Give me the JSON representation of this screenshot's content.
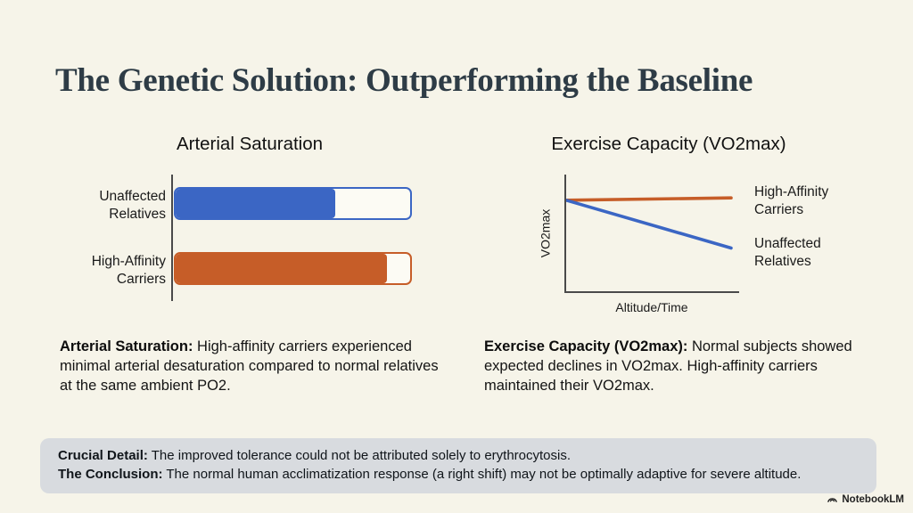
{
  "slide": {
    "title": "The Genetic Solution: Outperforming the Baseline",
    "colors": {
      "background": "#f6f4e9",
      "title_text": "#2e3c46",
      "axis": "#4a4a4a",
      "blue": "#3b66c4",
      "orange": "#c65d28",
      "callout_bg": "#d8dbdf"
    }
  },
  "chart_data": [
    {
      "type": "bar",
      "orientation": "horizontal",
      "title": "Arterial Saturation",
      "categories": [
        "Unaffected Relatives",
        "High-Affinity Carriers"
      ],
      "values": [
        68,
        90
      ],
      "xlim": [
        0,
        100
      ],
      "value_note": "axis unlabeled; values estimated as percent of bar track filled",
      "colors": [
        "#3b66c4",
        "#c65d28"
      ],
      "grid": false
    },
    {
      "type": "line",
      "title": "Exercise Capacity (VO2max)",
      "xlabel": "Altitude/Time",
      "ylabel": "VO2max",
      "xlim": [
        0,
        1
      ],
      "ylim": [
        0,
        1
      ],
      "ticks": "none",
      "grid": false,
      "legend_position": "right of line ends",
      "series": [
        {
          "name": "High-Affinity Carriers",
          "color": "#c65d28",
          "x": [
            0,
            1
          ],
          "y": [
            0.78,
            0.8
          ]
        },
        {
          "name": "Unaffected Relatives",
          "color": "#3b66c4",
          "x": [
            0,
            1
          ],
          "y": [
            0.78,
            0.37
          ]
        }
      ]
    }
  ],
  "notes": {
    "left": {
      "lead": "Arterial Saturation:",
      "text": " High-affinity carriers experienced minimal arterial desaturation compared to normal relatives at the same ambient PO2."
    },
    "right": {
      "lead": "Exercise Capacity (VO2max):",
      "text": " Normal subjects showed expected declines in VO2max. High-affinity carriers maintained their VO2max."
    }
  },
  "callout": {
    "lines": [
      {
        "lead": "Crucial Detail:",
        "text": " The improved tolerance could not be attributed solely to erythrocytosis."
      },
      {
        "lead": "The Conclusion:",
        "text": " The normal human acclimatization response (a right shift) may not be optimally adaptive for severe altitude."
      }
    ]
  },
  "footer": {
    "brand": "NotebookLM"
  }
}
